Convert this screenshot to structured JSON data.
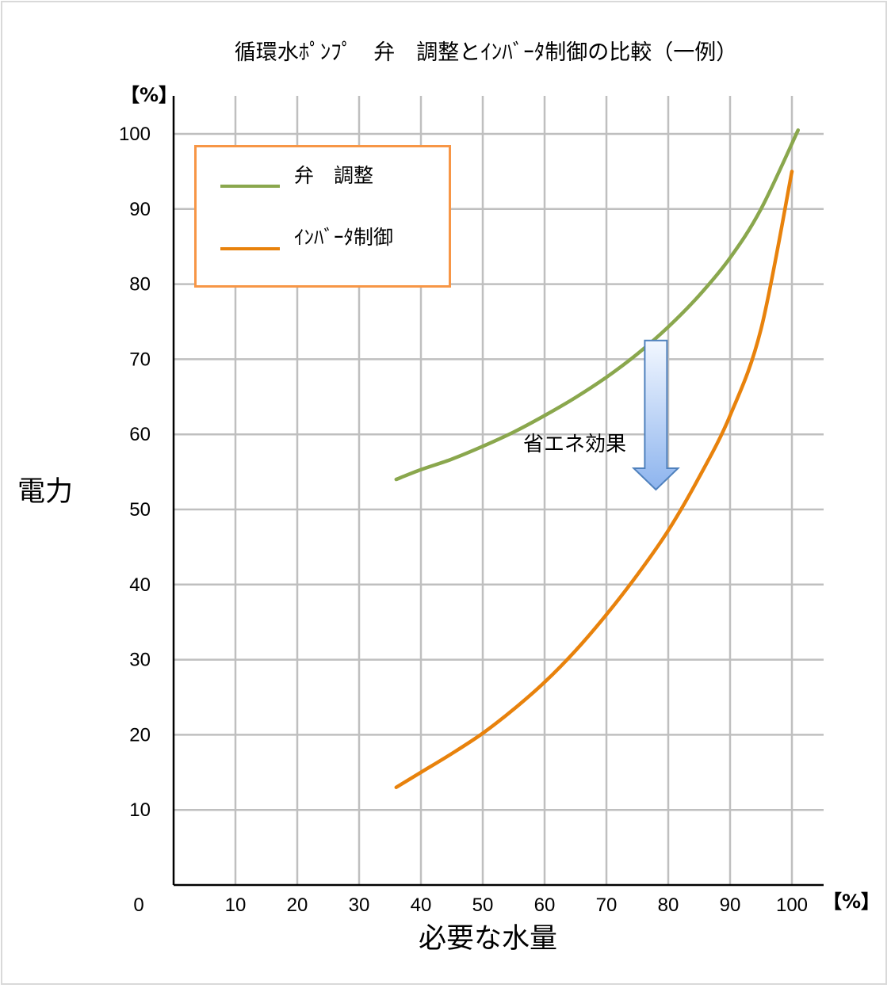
{
  "chart_data": {
    "type": "line",
    "title": "循環水ﾎﾟﾝﾌﾟ　弁　調整とｲﾝﾊﾞｰﾀ制御の比較（一例）",
    "xlabel": "必要な水量",
    "ylabel": "電力",
    "x_unit": "【%】",
    "y_unit": "【%】",
    "xlim": [
      0,
      105
    ],
    "ylim": [
      0,
      105
    ],
    "x_ticks": [
      0,
      10,
      20,
      30,
      40,
      50,
      60,
      70,
      80,
      90,
      100
    ],
    "y_ticks": [
      10,
      20,
      30,
      40,
      50,
      60,
      70,
      80,
      90,
      100
    ],
    "origin_label": "0",
    "grid": true,
    "legend_position": "top-left",
    "annotation": "省エネ効果",
    "series": [
      {
        "name": "弁　調整",
        "color": "#8aa74d",
        "x": [
          36,
          40,
          45,
          50,
          55,
          60,
          65,
          70,
          75,
          80,
          85,
          90,
          95,
          101
        ],
        "y": [
          54,
          55.3,
          56.7,
          58.4,
          60.3,
          62.5,
          64.9,
          67.6,
          70.7,
          74.3,
          78.5,
          83.5,
          90,
          100.5
        ]
      },
      {
        "name": "ｲﾝﾊﾞｰﾀ制御",
        "color": "#e8820c",
        "x": [
          36,
          40,
          45,
          50,
          55,
          60,
          65,
          70,
          75,
          80,
          85,
          90,
          95,
          100
        ],
        "y": [
          13,
          15,
          17.5,
          20.2,
          23.4,
          27,
          31.2,
          36,
          41.3,
          47.2,
          54.3,
          62.5,
          74,
          95
        ]
      }
    ],
    "arrow": {
      "x": 78,
      "y_from": 72.5,
      "y_to": 50
    }
  }
}
